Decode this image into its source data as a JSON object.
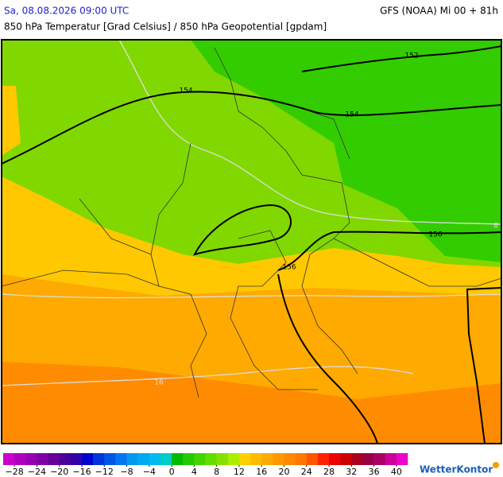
{
  "header": {
    "left": "Sa, 08.08.2026 09:00 UTC",
    "right": "GFS (NOAA) Mi 00 + 81h",
    "subtitle": "850 hPa Temperatur [Grad Celsius] / 850 hPa Geopotential [gpdam]"
  },
  "contour_labels": [
    "152",
    "154",
    "154",
    "156",
    "156",
    "8",
    "16"
  ],
  "colorbar": {
    "range": [
      -30,
      42
    ],
    "colors": [
      "#cc00cc",
      "#b000c0",
      "#9900b3",
      "#7f00a6",
      "#660099",
      "#4c0099",
      "#3300aa",
      "#0000cc",
      "#0033dd",
      "#0055e6",
      "#0077ee",
      "#0099f0",
      "#00aaf0",
      "#00bbee",
      "#00cccc",
      "#00bb00",
      "#22cc00",
      "#44d400",
      "#66dd00",
      "#88e000",
      "#aaee00",
      "#ffd000",
      "#ffbb00",
      "#ffaa00",
      "#ff9900",
      "#ff8800",
      "#ff7700",
      "#ff5500",
      "#ff2200",
      "#ee0000",
      "#cc0000",
      "#aa0022",
      "#990044",
      "#aa0066",
      "#cc0099",
      "#ee00cc"
    ],
    "ticks": [
      {
        "value": -28,
        "label": "−28"
      },
      {
        "value": -24,
        "label": "−24"
      },
      {
        "value": -20,
        "label": "−20"
      },
      {
        "value": -16,
        "label": "−16"
      },
      {
        "value": -12,
        "label": "−12"
      },
      {
        "value": -8,
        "label": "−8"
      },
      {
        "value": -4,
        "label": "−4"
      },
      0,
      4,
      8,
      12,
      16,
      20,
      24,
      28,
      32,
      36,
      40
    ]
  },
  "logo": "WetterKontor"
}
